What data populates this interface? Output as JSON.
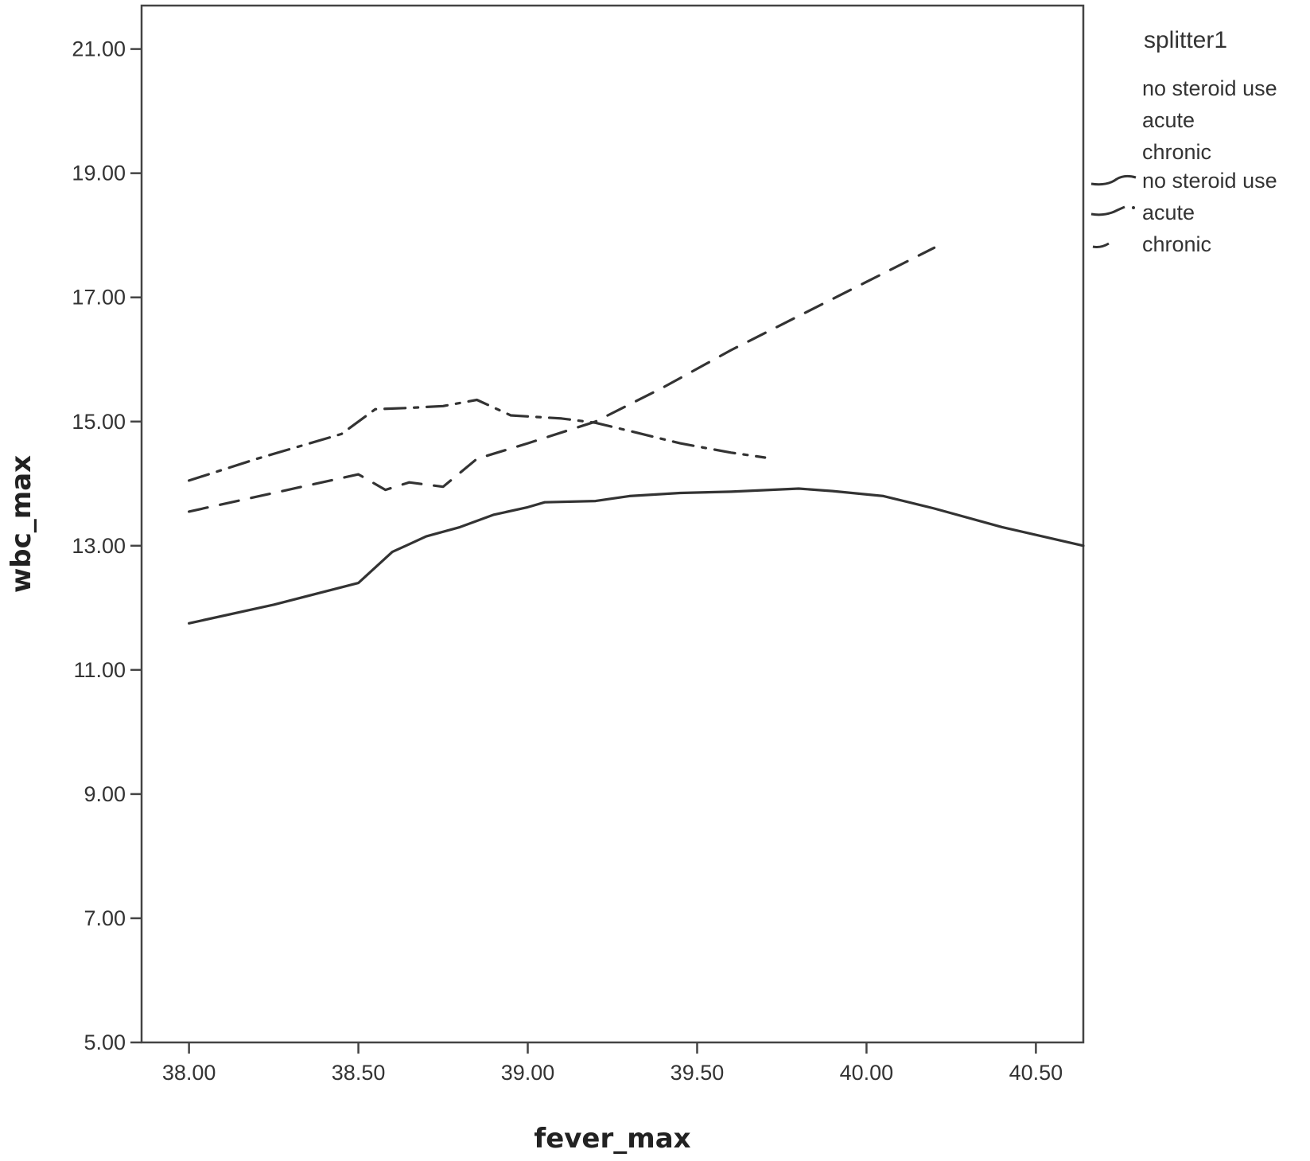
{
  "chart_data": {
    "type": "line",
    "title": "",
    "xlabel": "fever_max",
    "ylabel": "wbc_max",
    "xlim": [
      37.86,
      40.64
    ],
    "ylim": [
      5.0,
      21.7
    ],
    "xticks": [
      38.0,
      38.5,
      39.0,
      39.5,
      40.0,
      40.5
    ],
    "xtick_labels": [
      "38.00",
      "38.50",
      "39.00",
      "39.50",
      "40.00",
      "40.50"
    ],
    "yticks": [
      5.0,
      7.0,
      9.0,
      11.0,
      13.0,
      15.0,
      17.0,
      19.0,
      21.0
    ],
    "ytick_labels": [
      "5.00",
      "7.00",
      "9.00",
      "11.00",
      "13.00",
      "15.00",
      "17.00",
      "19.00",
      "21.00"
    ],
    "grid": false,
    "legend": {
      "title": "splitter1",
      "placement": "right",
      "text_entries": [
        "no steroid use",
        "acute",
        "chronic"
      ]
    },
    "series": [
      {
        "name": "no steroid use",
        "style": "solid",
        "points": [
          [
            38.0,
            11.75
          ],
          [
            38.25,
            12.05
          ],
          [
            38.5,
            12.4
          ],
          [
            38.6,
            12.9
          ],
          [
            38.7,
            13.15
          ],
          [
            38.8,
            13.3
          ],
          [
            38.9,
            13.5
          ],
          [
            39.0,
            13.62
          ],
          [
            39.05,
            13.7
          ],
          [
            39.2,
            13.72
          ],
          [
            39.3,
            13.8
          ],
          [
            39.45,
            13.85
          ],
          [
            39.6,
            13.87
          ],
          [
            39.8,
            13.92
          ],
          [
            39.9,
            13.88
          ],
          [
            40.05,
            13.8
          ],
          [
            40.2,
            13.6
          ],
          [
            40.4,
            13.3
          ],
          [
            40.64,
            13.0
          ]
        ]
      },
      {
        "name": "acute",
        "style": "dash-dot",
        "points": [
          [
            38.0,
            14.05
          ],
          [
            38.2,
            14.4
          ],
          [
            38.45,
            14.8
          ],
          [
            38.55,
            15.2
          ],
          [
            38.65,
            15.22
          ],
          [
            38.75,
            15.25
          ],
          [
            38.85,
            15.35
          ],
          [
            38.95,
            15.1
          ],
          [
            39.1,
            15.05
          ],
          [
            39.2,
            14.98
          ],
          [
            39.3,
            14.85
          ],
          [
            39.45,
            14.65
          ],
          [
            39.6,
            14.5
          ],
          [
            39.7,
            14.42
          ]
        ]
      },
      {
        "name": "chronic",
        "style": "dashed",
        "points": [
          [
            38.0,
            13.55
          ],
          [
            38.25,
            13.85
          ],
          [
            38.5,
            14.15
          ],
          [
            38.58,
            13.9
          ],
          [
            38.65,
            14.02
          ],
          [
            38.75,
            13.95
          ],
          [
            38.85,
            14.4
          ],
          [
            39.0,
            14.65
          ],
          [
            39.2,
            15.0
          ],
          [
            39.4,
            15.55
          ],
          [
            39.6,
            16.15
          ],
          [
            39.8,
            16.7
          ],
          [
            40.0,
            17.25
          ],
          [
            40.2,
            17.8
          ]
        ]
      }
    ]
  }
}
